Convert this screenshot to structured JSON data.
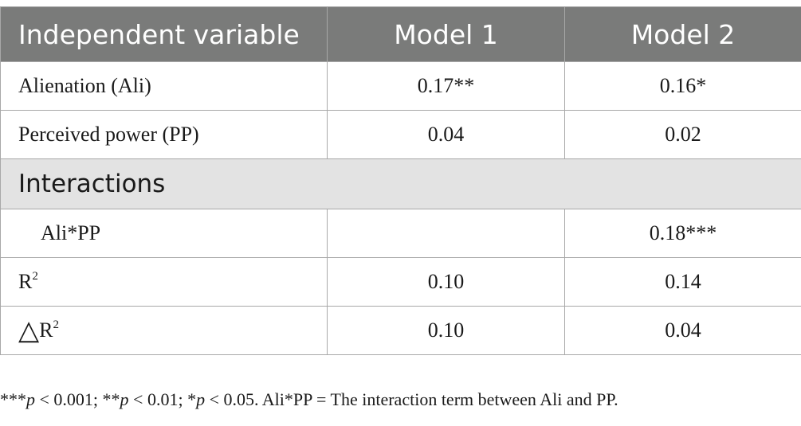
{
  "table": {
    "headers": [
      "Independent variable",
      "Model 1",
      "Model 2"
    ],
    "rows": [
      {
        "label": "Alienation (Ali)",
        "model1": "0.17**",
        "model2": "0.16*"
      },
      {
        "label": "Perceived power (PP)",
        "model1": "0.04",
        "model2": "0.02"
      }
    ],
    "section_label": "Interactions",
    "interaction_rows": [
      {
        "label": "Ali*PP",
        "model1": "",
        "model2": "0.18***"
      }
    ],
    "r2_row": {
      "label": "R",
      "label_sup": "2",
      "model1": "0.10",
      "model2": "0.14"
    },
    "delta_r2_row": {
      "symbol": "△",
      "label": "R",
      "label_sup": "2",
      "model1": "0.10",
      "model2": "0.04"
    }
  },
  "note": {
    "p1_stars": "***",
    "p_symbol": "p",
    "p1_cond": " < 0.001; ",
    "p2_stars": "**",
    "p2_cond": " < 0.01; ",
    "p3_stars": "*",
    "p3_cond": " < 0.05. ",
    "definition": "Ali*PP = The interaction term between Ali and PP."
  }
}
